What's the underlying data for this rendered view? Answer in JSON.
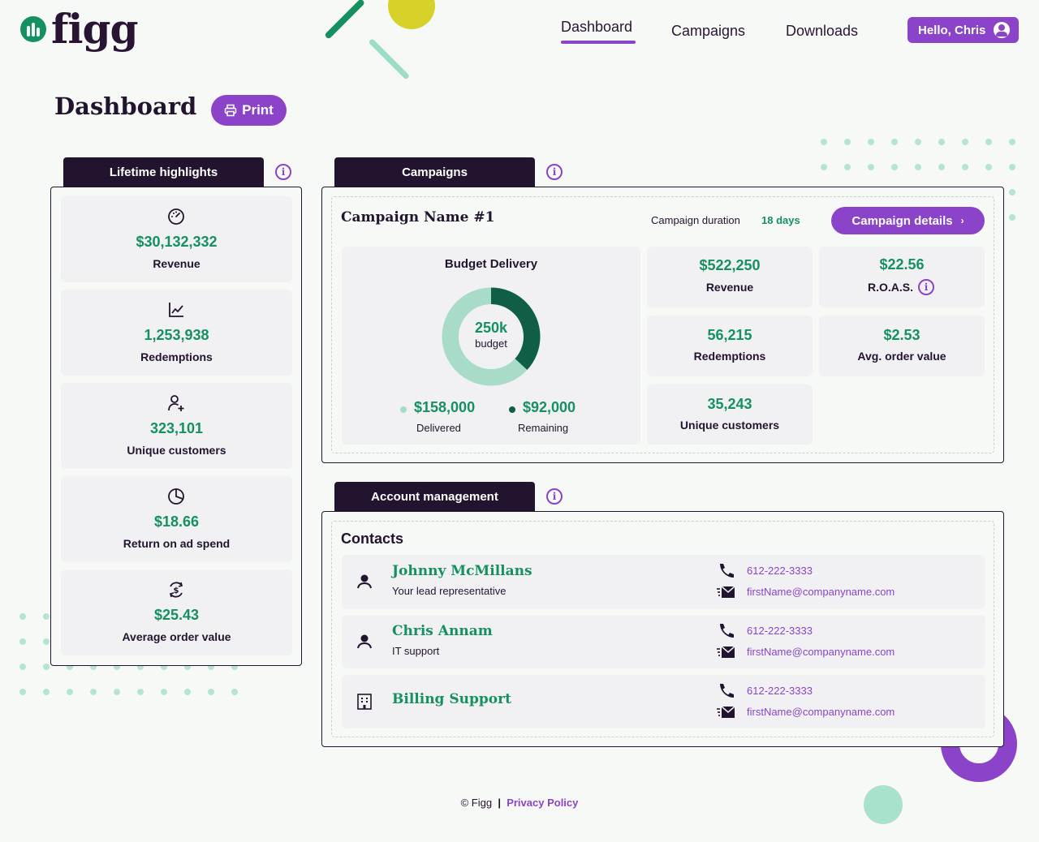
{
  "app": {
    "logo_text": "figg"
  },
  "nav": {
    "items": [
      {
        "label": "Dashboard",
        "active": true
      },
      {
        "label": "Campaigns",
        "active": false
      },
      {
        "label": "Downloads",
        "active": false
      }
    ],
    "user_greeting": "Hello, Chris"
  },
  "page": {
    "title": "Dashboard",
    "print_label": "Print"
  },
  "lifetime": {
    "tab_label": "Lifetime highlights",
    "items": [
      {
        "icon": "speedometer-icon",
        "value": "$30,132,332",
        "label": "Revenue"
      },
      {
        "icon": "line-chart-icon",
        "value": "1,253,938",
        "label": "Redemptions"
      },
      {
        "icon": "user-plus-icon",
        "value": "323,101",
        "label": "Unique customers"
      },
      {
        "icon": "pie-chart-icon",
        "value": "$18.66",
        "label": "Return on ad spend"
      },
      {
        "icon": "dollar-cycle-icon",
        "value": "$25.43",
        "label": "Average order value"
      }
    ]
  },
  "campaigns": {
    "tab_label": "Campaigns",
    "name": "Campaign Name #1",
    "duration_label": "Campaign duration",
    "duration_value": "18 days",
    "details_label": "Campaign details",
    "budget": {
      "title": "Budget Delivery",
      "center_value": "250k",
      "center_label": "budget",
      "delivered_value": "$158,000",
      "delivered_label": "Delivered",
      "remaining_value": "$92,000",
      "remaining_label": "Remaining",
      "delivered_fraction": 0.632
    },
    "metrics": [
      {
        "value": "$522,250",
        "label": "Revenue"
      },
      {
        "value": "$22.56",
        "label": "R.O.A.S."
      },
      {
        "value": "56,215",
        "label": "Redemptions"
      },
      {
        "value": "$2.53",
        "label": "Avg. order value"
      },
      {
        "value": "35,243",
        "label": "Unique customers"
      }
    ]
  },
  "account": {
    "tab_label": "Account management",
    "contacts_title": "Contacts",
    "contacts": [
      {
        "name": "Johnny McMillans",
        "role": "Your lead representative",
        "phone": "612-222-3333",
        "email": "firstName@companyname.com",
        "icon": "person-icon"
      },
      {
        "name": "Chris Annam",
        "role": "IT support",
        "phone": "612-222-3333",
        "email": "firstName@companyname.com",
        "icon": "person-icon"
      },
      {
        "name": "Billing Support",
        "role": "",
        "phone": "612-222-3333",
        "email": "firstName@companyname.com",
        "icon": "building-icon"
      }
    ]
  },
  "footer": {
    "copyright": "© Figg",
    "separator": "|",
    "privacy_label": "Privacy Policy"
  },
  "colors": {
    "brand_purple": "#8b44c9",
    "brand_green": "#159061",
    "dark": "#22142e",
    "mint": "#a8dcc9"
  }
}
